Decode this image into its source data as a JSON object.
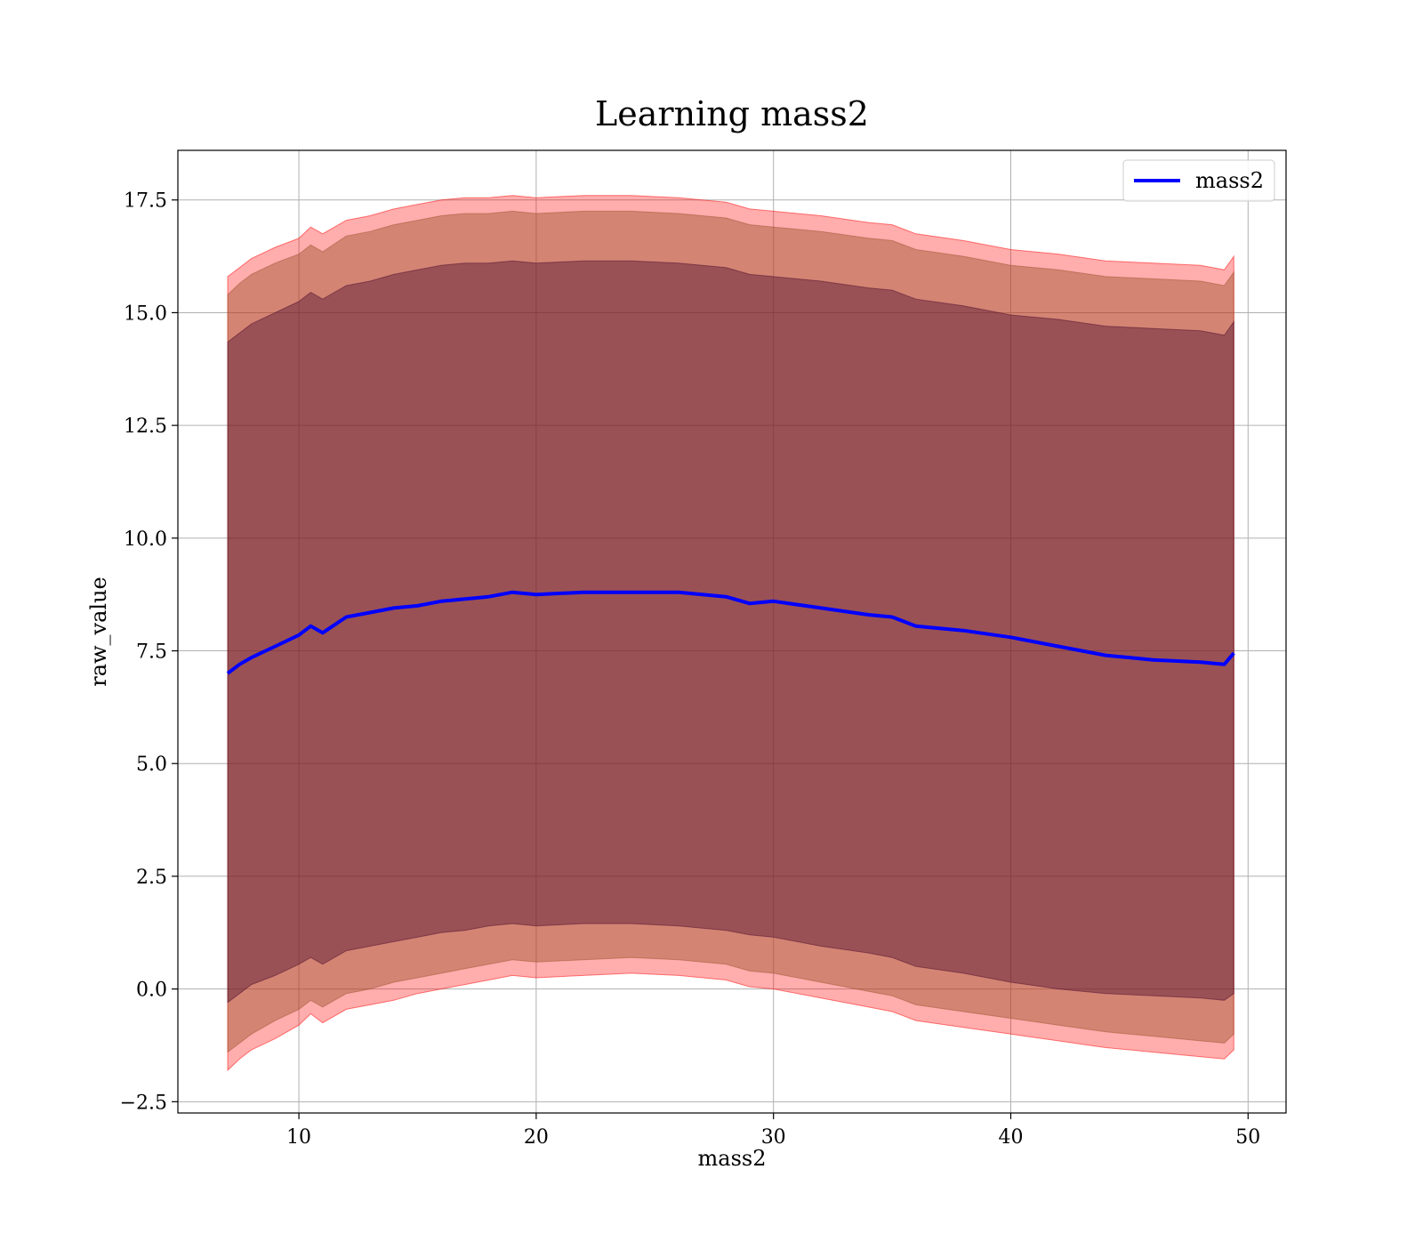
{
  "chart_data": {
    "type": "line",
    "title": "Learning mass2",
    "xlabel": "mass2",
    "ylabel": "raw_value",
    "xlim": [
      4.9,
      51.6
    ],
    "ylim": [
      -2.75,
      18.6
    ],
    "xticks": [
      10,
      20,
      30,
      40,
      50
    ],
    "xtick_labels": [
      "10",
      "20",
      "30",
      "40",
      "50"
    ],
    "yticks": [
      -2.5,
      0.0,
      2.5,
      5.0,
      7.5,
      10.0,
      12.5,
      15.0,
      17.5
    ],
    "ytick_labels": [
      "−2.5",
      "0.0",
      "2.5",
      "5.0",
      "7.5",
      "10.0",
      "12.5",
      "15.0",
      "17.5"
    ],
    "grid": true,
    "legend": {
      "position": "top-right",
      "entries": [
        "mass2"
      ]
    },
    "colors": {
      "line": "#0000ff",
      "outer_band": "#ff0000",
      "middle_band": "#a0522d",
      "inner_band": "#4b0d2e"
    },
    "x": [
      7.0,
      7.5,
      8.0,
      9.0,
      10.0,
      10.5,
      11.0,
      12.0,
      13.0,
      14.0,
      15.0,
      16.0,
      17.0,
      18.0,
      19.0,
      20.0,
      22.0,
      24.0,
      26.0,
      28.0,
      29.0,
      30.0,
      32.0,
      34.0,
      35.0,
      36.0,
      38.0,
      40.0,
      42.0,
      44.0,
      46.0,
      48.0,
      49.0,
      49.4
    ],
    "series": [
      {
        "name": "mass2",
        "values": [
          7.0,
          7.2,
          7.35,
          7.6,
          7.85,
          8.05,
          7.9,
          8.25,
          8.35,
          8.45,
          8.5,
          8.6,
          8.65,
          8.7,
          8.8,
          8.75,
          8.8,
          8.8,
          8.8,
          8.7,
          8.55,
          8.6,
          8.45,
          8.3,
          8.25,
          8.05,
          7.95,
          7.8,
          7.6,
          7.4,
          7.3,
          7.25,
          7.2,
          7.45
        ]
      }
    ],
    "bands": [
      {
        "lower": [
          -1.8,
          -1.55,
          -1.35,
          -1.1,
          -0.8,
          -0.55,
          -0.75,
          -0.45,
          -0.35,
          -0.25,
          -0.1,
          0.0,
          0.1,
          0.2,
          0.3,
          0.25,
          0.3,
          0.35,
          0.3,
          0.2,
          0.05,
          0.0,
          -0.2,
          -0.4,
          -0.5,
          -0.7,
          -0.85,
          -1.0,
          -1.15,
          -1.3,
          -1.4,
          -1.5,
          -1.55,
          -1.35
        ],
        "upper": [
          15.8,
          16.0,
          16.2,
          16.45,
          16.65,
          16.9,
          16.75,
          17.05,
          17.15,
          17.3,
          17.4,
          17.5,
          17.55,
          17.55,
          17.6,
          17.55,
          17.6,
          17.6,
          17.55,
          17.45,
          17.3,
          17.25,
          17.15,
          17.0,
          16.95,
          16.75,
          16.6,
          16.4,
          16.3,
          16.15,
          16.1,
          16.05,
          15.95,
          16.25
        ]
      },
      {
        "lower": [
          -1.4,
          -1.2,
          -1.0,
          -0.7,
          -0.45,
          -0.25,
          -0.4,
          -0.1,
          0.0,
          0.15,
          0.25,
          0.35,
          0.45,
          0.55,
          0.65,
          0.6,
          0.65,
          0.7,
          0.65,
          0.55,
          0.4,
          0.35,
          0.15,
          -0.05,
          -0.15,
          -0.35,
          -0.5,
          -0.65,
          -0.8,
          -0.95,
          -1.05,
          -1.15,
          -1.2,
          -1.0
        ],
        "upper": [
          15.4,
          15.65,
          15.85,
          16.1,
          16.3,
          16.5,
          16.35,
          16.7,
          16.8,
          16.95,
          17.05,
          17.15,
          17.2,
          17.2,
          17.25,
          17.2,
          17.25,
          17.25,
          17.2,
          17.1,
          16.95,
          16.9,
          16.8,
          16.65,
          16.6,
          16.4,
          16.25,
          16.05,
          15.95,
          15.8,
          15.75,
          15.7,
          15.6,
          15.9
        ]
      },
      {
        "lower": [
          -0.3,
          -0.1,
          0.1,
          0.3,
          0.55,
          0.7,
          0.55,
          0.85,
          0.95,
          1.05,
          1.15,
          1.25,
          1.3,
          1.4,
          1.45,
          1.4,
          1.45,
          1.45,
          1.4,
          1.3,
          1.2,
          1.15,
          0.95,
          0.8,
          0.7,
          0.5,
          0.35,
          0.15,
          -0.0,
          -0.1,
          -0.15,
          -0.2,
          -0.25,
          -0.1
        ],
        "upper": [
          14.35,
          14.55,
          14.75,
          15.0,
          15.25,
          15.45,
          15.3,
          15.6,
          15.7,
          15.85,
          15.95,
          16.05,
          16.1,
          16.1,
          16.15,
          16.1,
          16.15,
          16.15,
          16.1,
          16.0,
          15.85,
          15.8,
          15.7,
          15.55,
          15.5,
          15.3,
          15.15,
          14.95,
          14.85,
          14.7,
          14.65,
          14.6,
          14.5,
          14.8
        ]
      }
    ]
  }
}
